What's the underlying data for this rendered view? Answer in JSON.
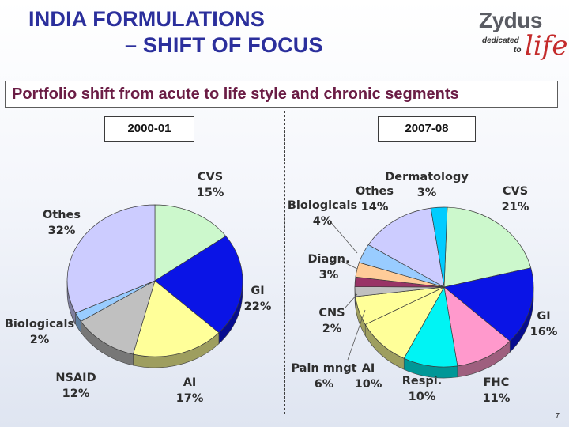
{
  "title_line1": "INDIA FORMULATIONS",
  "title_line2": "– SHIFT OF FOCUS",
  "logo": {
    "brand": "Zydus",
    "tag_line1": "dedicated",
    "tag_line2": "to",
    "tag_script": "life"
  },
  "subtitle": "Portfolio shift from acute to life style and chronic segments",
  "page_number": "7",
  "colors": {
    "CVS": "#ccf8cc",
    "GI": "#0a14e6",
    "AI": "#ffff99",
    "NSAID": "#c0c0c0",
    "Biologicals": "#99ccff",
    "Othes": "#ccccff",
    "FHC": "#ff99cc",
    "Respi": "#00f4f4",
    "CNS": "#c0c0c0",
    "Diagn": "#ffcc99",
    "Maroon": "#993366",
    "Dermatology": "#00ccff"
  },
  "chart_data": [
    {
      "type": "pie",
      "title": "2000-01",
      "slices": [
        {
          "label": "CVS",
          "value": 15,
          "value_label": "15%",
          "color_key": "CVS"
        },
        {
          "label": "GI",
          "value": 22,
          "value_label": "22%",
          "color_key": "GI"
        },
        {
          "label": "AI",
          "value": 17,
          "value_label": "17%",
          "color_key": "AI"
        },
        {
          "label": "NSAID",
          "value": 12,
          "value_label": "12%",
          "color_key": "NSAID"
        },
        {
          "label": "Biologicals",
          "value": 2,
          "value_label": "2%",
          "color_key": "Biologicals"
        },
        {
          "label": "Othes",
          "value": 32,
          "value_label": "32%",
          "color_key": "Othes"
        }
      ]
    },
    {
      "type": "pie",
      "title": "2007-08",
      "slices": [
        {
          "label": "CVS",
          "value": 21,
          "value_label": "21%",
          "color_key": "CVS"
        },
        {
          "label": "GI",
          "value": 16,
          "value_label": "16%",
          "color_key": "GI"
        },
        {
          "label": "FHC",
          "value": 11,
          "value_label": "11%",
          "color_key": "FHC"
        },
        {
          "label": "Respi.",
          "value": 10,
          "value_label": "10%",
          "color_key": "Respi"
        },
        {
          "label": "AI",
          "value": 10,
          "value_label": "10%",
          "color_key": "AI"
        },
        {
          "label": "Pain mngt",
          "value": 6,
          "value_label": "6%",
          "color_key": "AI"
        },
        {
          "label": "CNS",
          "value": 2,
          "value_label": "2%",
          "color_key": "CNS"
        },
        {
          "label": "",
          "value": 2,
          "value_label": "",
          "color_key": "Maroon"
        },
        {
          "label": "Diagn.",
          "value": 3,
          "value_label": "3%",
          "color_key": "Diagn"
        },
        {
          "label": "Biologicals",
          "value": 4,
          "value_label": "4%",
          "color_key": "Biologicals"
        },
        {
          "label": "Othes",
          "value": 14,
          "value_label": "14%",
          "color_key": "Othes"
        },
        {
          "label": "Dermatology",
          "value": 3,
          "value_label": "3%",
          "color_key": "Dermatology"
        }
      ]
    }
  ]
}
